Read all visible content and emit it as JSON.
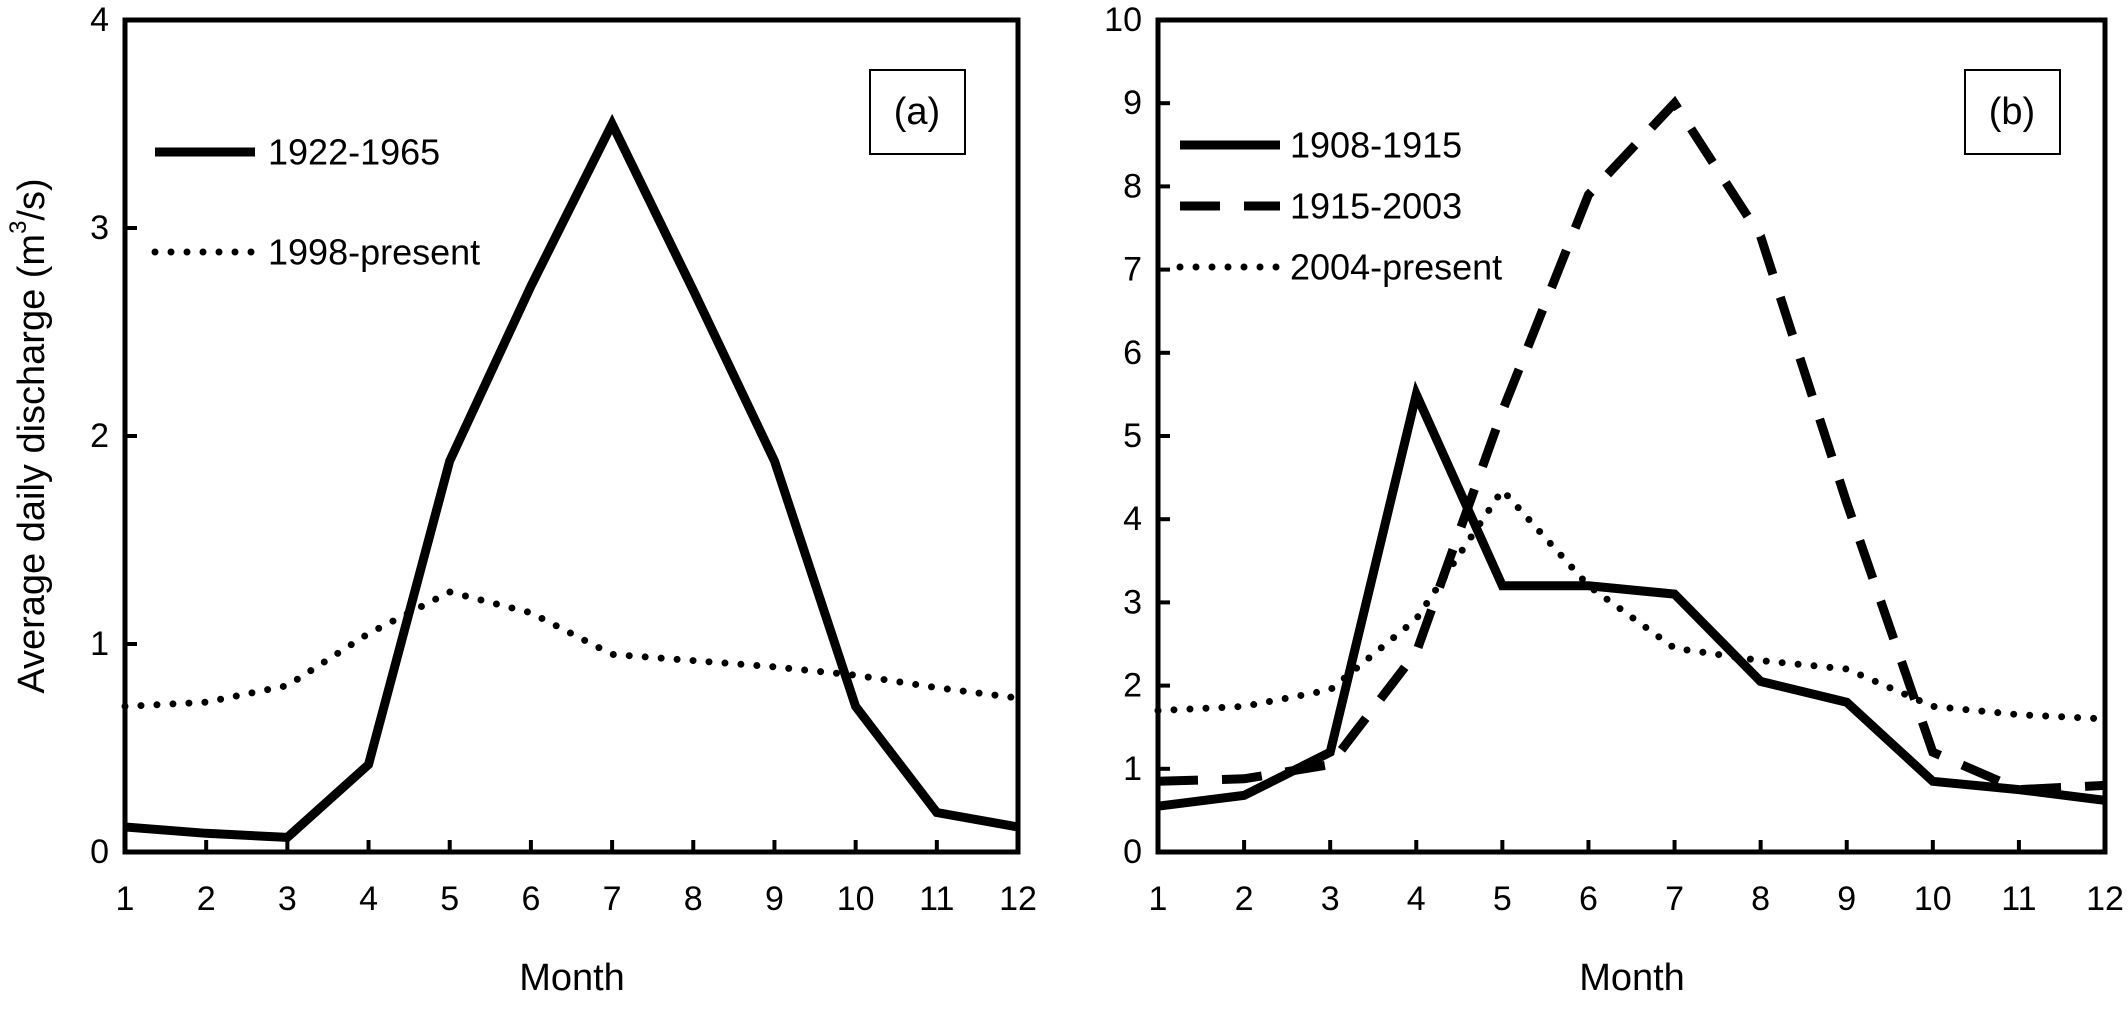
{
  "chart_data": [
    {
      "type": "line",
      "panel_label": "(a)",
      "xlabel": "Month",
      "ylabel": "Average daily discharge (m³/s)",
      "ylabel_parts": {
        "pre": "Average daily discharge (m",
        "sup": "3",
        "post": "/s)"
      },
      "xlim": [
        1,
        12
      ],
      "ylim": [
        0,
        4
      ],
      "x_ticks": [
        1,
        2,
        3,
        4,
        5,
        6,
        7,
        8,
        9,
        10,
        11,
        12
      ],
      "y_ticks": [
        0,
        1,
        2,
        3,
        4
      ],
      "grid": false,
      "legend_position": "top-left",
      "series": [
        {
          "name": "1922-1965",
          "style": "solid",
          "x": [
            1,
            2,
            3,
            4,
            5,
            6,
            7,
            8,
            9,
            10,
            11,
            12
          ],
          "y": [
            0.12,
            0.09,
            0.07,
            0.42,
            1.88,
            2.72,
            3.5,
            2.7,
            1.88,
            0.7,
            0.19,
            0.12
          ]
        },
        {
          "name": "1998-present",
          "style": "dotted",
          "x": [
            1,
            2,
            3,
            4,
            5,
            6,
            7,
            8,
            9,
            10,
            11,
            12
          ],
          "y": [
            0.7,
            0.72,
            0.8,
            1.05,
            1.25,
            1.15,
            0.95,
            0.92,
            0.89,
            0.85,
            0.79,
            0.74
          ]
        }
      ]
    },
    {
      "type": "line",
      "panel_label": "(b)",
      "xlabel": "Month",
      "ylabel": "",
      "xlim": [
        1,
        12
      ],
      "ylim": [
        0,
        10
      ],
      "x_ticks": [
        1,
        2,
        3,
        4,
        5,
        6,
        7,
        8,
        9,
        10,
        11,
        12
      ],
      "y_ticks": [
        0,
        1,
        2,
        3,
        4,
        5,
        6,
        7,
        8,
        9,
        10
      ],
      "grid": false,
      "legend_position": "top-left",
      "series": [
        {
          "name": "1908-1915",
          "style": "solid",
          "x": [
            1,
            2,
            3,
            4,
            5,
            6,
            7,
            8,
            9,
            10,
            11,
            12
          ],
          "y": [
            0.55,
            0.68,
            1.2,
            5.5,
            3.2,
            3.2,
            3.1,
            2.05,
            1.8,
            0.85,
            0.75,
            0.62
          ]
        },
        {
          "name": "1915-2003",
          "style": "dashed",
          "x": [
            1,
            2,
            3,
            4,
            5,
            6,
            7,
            8,
            9,
            10,
            11,
            12
          ],
          "y": [
            0.85,
            0.88,
            1.05,
            2.4,
            5.3,
            7.9,
            9.0,
            7.4,
            4.2,
            1.2,
            0.75,
            0.8
          ]
        },
        {
          "name": "2004-present",
          "style": "dotted",
          "x": [
            1,
            2,
            3,
            4,
            5,
            6,
            7,
            8,
            9,
            10,
            11,
            12
          ],
          "y": [
            1.7,
            1.75,
            1.95,
            2.8,
            4.35,
            3.2,
            2.45,
            2.3,
            2.2,
            1.75,
            1.65,
            1.6
          ]
        }
      ]
    }
  ]
}
